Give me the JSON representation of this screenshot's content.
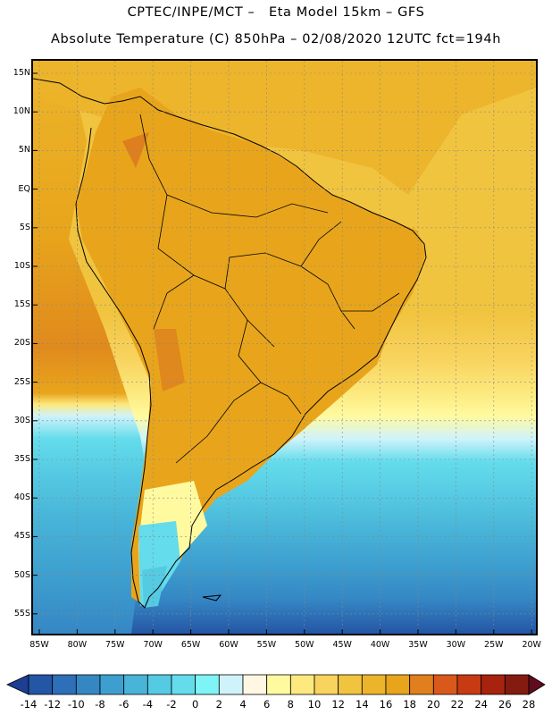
{
  "title": {
    "line1": "CPTEC/INPE/MCT –   Eta Model 15km – GFS",
    "line2": "Absolute Temperature (C) 850hPa – 02/08/2020 12UTC fct=194h"
  },
  "map": {
    "lat_ticks": [
      "15N",
      "10N",
      "5N",
      "EQ",
      "5S",
      "10S",
      "15S",
      "20S",
      "25S",
      "30S",
      "35S",
      "40S",
      "45S",
      "50S",
      "55S"
    ],
    "lon_ticks": [
      "85W",
      "80W",
      "75W",
      "70W",
      "65W",
      "60W",
      "55W",
      "50W",
      "45W",
      "40W",
      "35W",
      "30W",
      "25W",
      "20W"
    ]
  },
  "colorbar": {
    "labels": [
      "-14",
      "-12",
      "-10",
      "-8",
      "-6",
      "-4",
      "-2",
      "0",
      "2",
      "4",
      "6",
      "8",
      "10",
      "12",
      "14",
      "16",
      "18",
      "20",
      "22",
      "24",
      "26",
      "28"
    ],
    "colors": [
      "#1c3f94",
      "#2456a6",
      "#2d6fb8",
      "#3587c4",
      "#3d9fcf",
      "#48b4d8",
      "#55cae3",
      "#64dceb",
      "#7ff4f6",
      "#cff3fb",
      "#fff7e2",
      "#fffaa0",
      "#fde97e",
      "#f8d35e",
      "#f1c43f",
      "#ecb42a",
      "#e8a51b",
      "#e07f1d",
      "#d9591a",
      "#c73a12",
      "#a7230e",
      "#841b10",
      "#5f0c1c"
    ]
  }
}
